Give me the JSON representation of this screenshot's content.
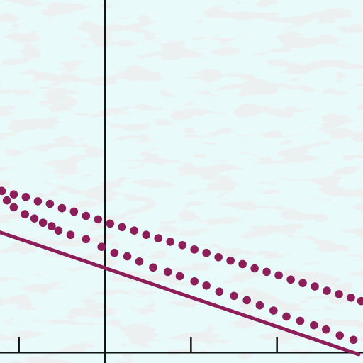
{
  "chart_data": {
    "type": "scatter",
    "title": "",
    "xlabel": "",
    "ylabel": "",
    "xlim": [
      -1.22,
      3.0
    ],
    "ylim": [
      -0.12,
      4.1
    ],
    "grid": false,
    "legend": "none",
    "x_ticks": [
      -1,
      1,
      2
    ],
    "colors": {
      "background": "#e9fafb",
      "paper_texture": "#d9dcdc",
      "axis": "#111111",
      "series": "#8c1f5a"
    },
    "series": [
      {
        "kind": "line",
        "x": [
          -1.22,
          2.95
        ],
        "y": [
          1.4,
          -0.02
        ]
      },
      {
        "kind": "points",
        "x": [
          -1.14,
          -1.06,
          -0.93,
          -0.82,
          -0.72,
          -0.62,
          -0.54,
          -0.4,
          -0.22,
          -0.04,
          0.11,
          0.26,
          0.4,
          0.56,
          0.73,
          0.87,
          1.04,
          1.18,
          1.33,
          1.5,
          1.65,
          1.8,
          1.96,
          2.11,
          2.27,
          2.43,
          2.57,
          2.73,
          2.89
        ],
        "y": [
          1.77,
          1.69,
          1.61,
          1.56,
          1.51,
          1.47,
          1.42,
          1.37,
          1.32,
          1.23,
          1.16,
          1.12,
          1.06,
          0.99,
          0.94,
          0.89,
          0.83,
          0.78,
          0.71,
          0.66,
          0.61,
          0.55,
          0.49,
          0.42,
          0.37,
          0.32,
          0.27,
          0.2,
          0.15
        ]
      },
      {
        "kind": "points",
        "x": [
          -1.2,
          -1.06,
          -0.92,
          -0.78,
          -0.64,
          -0.5,
          -0.36,
          -0.22,
          -0.08,
          0.06,
          0.2,
          0.34,
          0.48,
          0.62,
          0.76,
          0.9,
          1.04,
          1.18,
          1.32,
          1.46,
          1.6,
          1.74,
          1.88,
          2.02,
          2.16,
          2.3,
          2.44,
          2.58,
          2.72,
          2.86,
          2.98
        ],
        "y": [
          1.88,
          1.84,
          1.81,
          1.76,
          1.73,
          1.68,
          1.64,
          1.59,
          1.55,
          1.5,
          1.46,
          1.42,
          1.37,
          1.33,
          1.29,
          1.25,
          1.2,
          1.16,
          1.11,
          1.07,
          1.03,
          0.98,
          0.94,
          0.9,
          0.85,
          0.81,
          0.77,
          0.72,
          0.68,
          0.64,
          0.6
        ]
      }
    ]
  }
}
